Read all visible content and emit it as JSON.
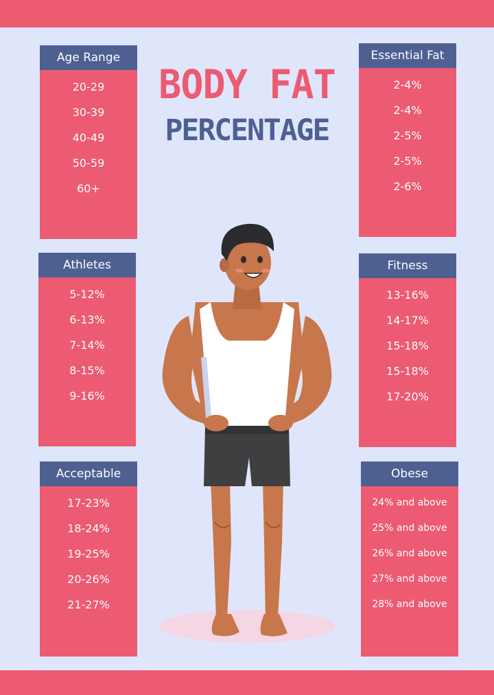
{
  "title": {
    "line1": "BODY FAT",
    "line2": "PERCENTAGE"
  },
  "colors": {
    "accent": "#ec5b72",
    "header": "#4e5f92",
    "background": "#dfe6fb"
  },
  "cards": {
    "age": {
      "header": "Age Range",
      "items": [
        "20-29",
        "30-39",
        "40-49",
        "50-59",
        "60+"
      ]
    },
    "essential": {
      "header": "Essential Fat",
      "items": [
        "2-4%",
        "2-4%",
        "2-5%",
        "2-5%",
        "2-6%"
      ]
    },
    "athletes": {
      "header": "Athletes",
      "items": [
        "5-12%",
        "6-13%",
        "7-14%",
        "8-15%",
        "9-16%"
      ]
    },
    "fitness": {
      "header": "Fitness",
      "items": [
        "13-16%",
        "14-17%",
        "15-18%",
        "15-18%",
        "17-20%"
      ]
    },
    "acceptable": {
      "header": "Acceptable",
      "items": [
        "17-23%",
        "18-24%",
        "19-25%",
        "20-26%",
        "21-27%"
      ]
    },
    "obese": {
      "header": "Obese",
      "items": [
        "24% and above",
        "25% and above",
        "26% and above",
        "27% and above",
        "28% and above"
      ]
    }
  },
  "illustration": {
    "subject": "man-in-tank-top-icon"
  }
}
